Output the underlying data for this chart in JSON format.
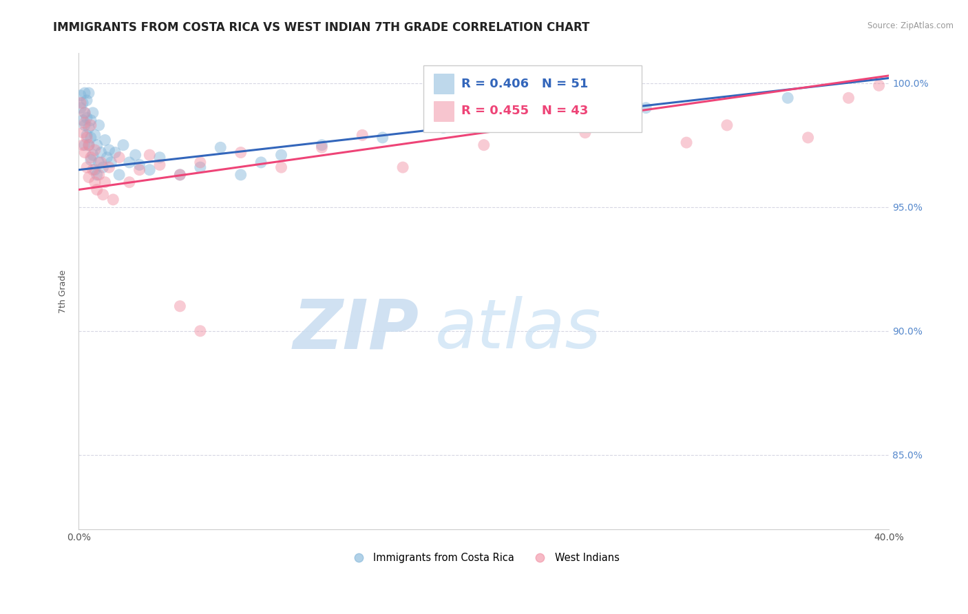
{
  "title": "IMMIGRANTS FROM COSTA RICA VS WEST INDIAN 7TH GRADE CORRELATION CHART",
  "source": "Source: ZipAtlas.com",
  "ylabel": "7th Grade",
  "legend_blue_label": "Immigrants from Costa Rica",
  "legend_pink_label": "West Indians",
  "legend_blue_R": "R = 0.406",
  "legend_blue_N": "N = 51",
  "legend_pink_R": "R = 0.455",
  "legend_pink_N": "N = 43",
  "blue_color": "#7EB3D8",
  "pink_color": "#F08CA0",
  "trend_blue_color": "#3366BB",
  "trend_pink_color": "#EE4477",
  "blue_scatter": [
    [
      0.001,
      0.995
    ],
    [
      0.001,
      0.99
    ],
    [
      0.002,
      0.985
    ],
    [
      0.002,
      0.992
    ],
    [
      0.003,
      0.975
    ],
    [
      0.003,
      0.988
    ],
    [
      0.003,
      0.996
    ],
    [
      0.003,
      0.983
    ],
    [
      0.004,
      0.979
    ],
    [
      0.004,
      0.993
    ],
    [
      0.004,
      0.986
    ],
    [
      0.005,
      0.975
    ],
    [
      0.005,
      0.982
    ],
    [
      0.005,
      0.996
    ],
    [
      0.006,
      0.969
    ],
    [
      0.006,
      0.978
    ],
    [
      0.006,
      0.985
    ],
    [
      0.007,
      0.971
    ],
    [
      0.007,
      0.988
    ],
    [
      0.008,
      0.965
    ],
    [
      0.008,
      0.979
    ],
    [
      0.009,
      0.963
    ],
    [
      0.009,
      0.975
    ],
    [
      0.01,
      0.968
    ],
    [
      0.01,
      0.983
    ],
    [
      0.011,
      0.972
    ],
    [
      0.012,
      0.966
    ],
    [
      0.013,
      0.977
    ],
    [
      0.014,
      0.97
    ],
    [
      0.015,
      0.973
    ],
    [
      0.016,
      0.968
    ],
    [
      0.018,
      0.972
    ],
    [
      0.02,
      0.963
    ],
    [
      0.022,
      0.975
    ],
    [
      0.025,
      0.968
    ],
    [
      0.028,
      0.971
    ],
    [
      0.03,
      0.967
    ],
    [
      0.035,
      0.965
    ],
    [
      0.04,
      0.97
    ],
    [
      0.05,
      0.963
    ],
    [
      0.06,
      0.966
    ],
    [
      0.07,
      0.974
    ],
    [
      0.08,
      0.963
    ],
    [
      0.09,
      0.968
    ],
    [
      0.1,
      0.971
    ],
    [
      0.12,
      0.975
    ],
    [
      0.15,
      0.978
    ],
    [
      0.18,
      0.982
    ],
    [
      0.22,
      0.985
    ],
    [
      0.28,
      0.99
    ],
    [
      0.35,
      0.994
    ]
  ],
  "pink_scatter": [
    [
      0.001,
      0.992
    ],
    [
      0.002,
      0.98
    ],
    [
      0.002,
      0.975
    ],
    [
      0.003,
      0.984
    ],
    [
      0.003,
      0.972
    ],
    [
      0.003,
      0.988
    ],
    [
      0.004,
      0.966
    ],
    [
      0.004,
      0.978
    ],
    [
      0.005,
      0.962
    ],
    [
      0.005,
      0.975
    ],
    [
      0.006,
      0.97
    ],
    [
      0.006,
      0.983
    ],
    [
      0.007,
      0.965
    ],
    [
      0.008,
      0.96
    ],
    [
      0.008,
      0.973
    ],
    [
      0.009,
      0.957
    ],
    [
      0.01,
      0.963
    ],
    [
      0.011,
      0.968
    ],
    [
      0.012,
      0.955
    ],
    [
      0.013,
      0.96
    ],
    [
      0.015,
      0.966
    ],
    [
      0.017,
      0.953
    ],
    [
      0.02,
      0.97
    ],
    [
      0.025,
      0.96
    ],
    [
      0.03,
      0.965
    ],
    [
      0.035,
      0.971
    ],
    [
      0.04,
      0.967
    ],
    [
      0.05,
      0.963
    ],
    [
      0.06,
      0.968
    ],
    [
      0.08,
      0.972
    ],
    [
      0.1,
      0.966
    ],
    [
      0.12,
      0.974
    ],
    [
      0.14,
      0.979
    ],
    [
      0.16,
      0.966
    ],
    [
      0.2,
      0.975
    ],
    [
      0.25,
      0.98
    ],
    [
      0.3,
      0.976
    ],
    [
      0.32,
      0.983
    ],
    [
      0.36,
      0.978
    ],
    [
      0.38,
      0.994
    ],
    [
      0.395,
      0.999
    ],
    [
      0.05,
      0.91
    ],
    [
      0.06,
      0.9
    ]
  ],
  "xlim": [
    0.0,
    0.4
  ],
  "ylim": [
    0.82,
    1.012
  ],
  "yticks": [
    0.85,
    0.9,
    0.95,
    1.0
  ],
  "ytick_labels": [
    "85.0%",
    "90.0%",
    "95.0%",
    "100.0%"
  ],
  "xticks": [
    0.0,
    0.1,
    0.2,
    0.3,
    0.4
  ],
  "xtick_labels": [
    "0.0%",
    "",
    "",
    "",
    "40.0%"
  ],
  "watermark_zip": "ZIP",
  "watermark_atlas": "atlas",
  "background_color": "#ffffff",
  "grid_color": "#ccccdd",
  "title_fontsize": 12,
  "axis_label_fontsize": 9,
  "tick_fontsize": 10,
  "right_tick_color": "#5588CC"
}
